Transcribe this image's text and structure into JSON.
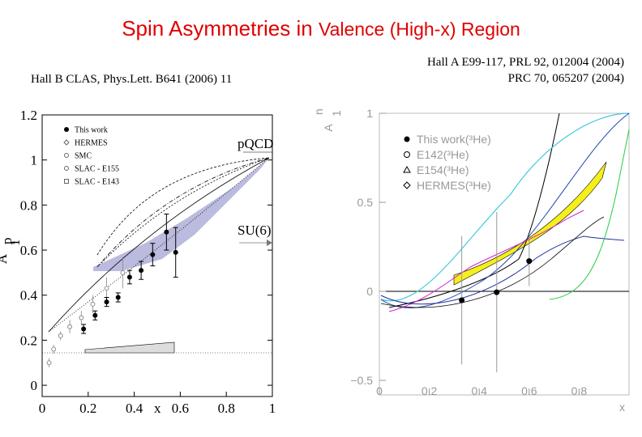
{
  "page": {
    "title_part1": "Spin Asymmetries in ",
    "title_part2": "Valence (High-x) Region",
    "citation_left": "Hall B CLAS, Phys.Lett. B641 (2006) 11",
    "citation_right_line1": "Hall A E99-117, PRL 92, 012004 (2004)",
    "citation_right_line2": "PRC 70, 065207 (2004)",
    "title_color": "#e10000"
  },
  "chart_data": [
    {
      "type": "scatter",
      "title": "",
      "xlabel": "x",
      "ylabel": "A",
      "ylabel_sup": "p",
      "ylabel_sub": "1",
      "xlim": [
        0,
        1
      ],
      "ylim": [
        -0.05,
        1.2
      ],
      "xticks": [
        "0",
        "0.2",
        "0.4",
        "0.6",
        "0.8",
        "1"
      ],
      "yticks": [
        "0",
        "0.2",
        "0.4",
        "0.6",
        "0.8",
        "1",
        "1.2"
      ],
      "legend": [
        "This work",
        "HERMES",
        "SMC",
        "SLAC - E155",
        "SLAC - E143"
      ],
      "legend_position": "top-left",
      "annotations": [
        "pQCD",
        "SU(6)"
      ],
      "series": [
        {
          "name": "This work",
          "x": [
            0.18,
            0.23,
            0.28,
            0.33,
            0.38,
            0.43,
            0.48,
            0.54,
            0.58
          ],
          "y": [
            0.25,
            0.31,
            0.37,
            0.39,
            0.48,
            0.51,
            0.58,
            0.68,
            0.59
          ],
          "err": [
            0.02,
            0.02,
            0.02,
            0.02,
            0.03,
            0.04,
            0.05,
            0.08,
            0.11
          ]
        },
        {
          "name": "SLAC - E155",
          "x": [
            0.03,
            0.05,
            0.08,
            0.12,
            0.17,
            0.22,
            0.28,
            0.35
          ],
          "y": [
            0.1,
            0.16,
            0.22,
            0.26,
            0.3,
            0.36,
            0.43,
            0.5
          ],
          "err": [
            0.02,
            0.02,
            0.02,
            0.03,
            0.03,
            0.04,
            0.05,
            0.07
          ]
        }
      ]
    },
    {
      "type": "scatter",
      "title": "",
      "xlabel": "x",
      "ylabel": "A",
      "ylabel_sup": "n",
      "ylabel_sub": "1",
      "xlim": [
        0,
        1
      ],
      "ylim": [
        -0.5,
        1
      ],
      "xticks": [
        "0",
        "0.2",
        "0.4",
        "0.6",
        "0.8"
      ],
      "yticks": [
        "−0.5",
        "0",
        "0.5",
        "1"
      ],
      "legend": [
        "This work(³He)",
        "E142(³He)",
        "E154(³He)",
        "HERMES(³He)"
      ],
      "legend_position": "top-left",
      "series": [
        {
          "name": "This work(³He)",
          "x": [
            0.33,
            0.47,
            0.6
          ],
          "y": [
            -0.05,
            -0.005,
            0.17
          ],
          "err": [
            0.36,
            0.45,
            0.14
          ]
        }
      ]
    }
  ]
}
